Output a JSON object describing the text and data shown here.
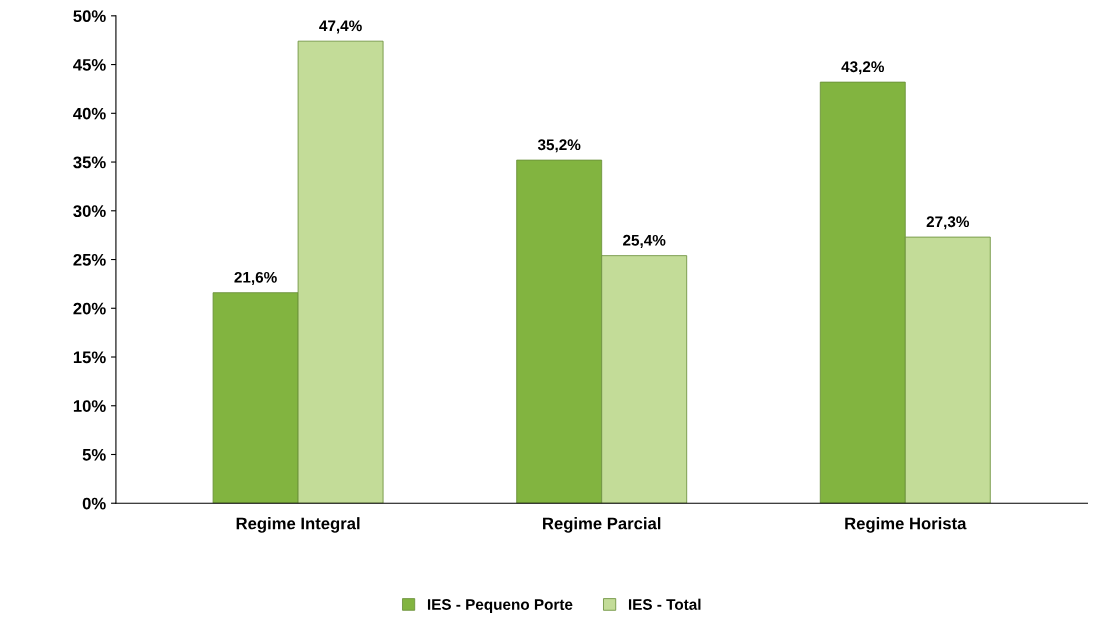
{
  "chart_data": {
    "type": "bar",
    "categories": [
      "Regime Integral",
      "Regime Parcial",
      "Regime Horista"
    ],
    "series": [
      {
        "name": "IES - Pequeno Porte",
        "color": "#82b440",
        "values": [
          21.6,
          35.2,
          43.2
        ],
        "value_labels": [
          "21,6%",
          "35,2%",
          "43,2%"
        ]
      },
      {
        "name": "IES - Total",
        "color": "#c3dc98",
        "values": [
          47.4,
          25.4,
          27.3
        ],
        "value_labels": [
          "47,4%",
          "25,4%",
          "27,3%"
        ]
      }
    ],
    "ylim": [
      0,
      50
    ],
    "yticks": [
      {
        "value": 0,
        "label": "0%"
      },
      {
        "value": 5,
        "label": "5%"
      },
      {
        "value": 10,
        "label": "10%"
      },
      {
        "value": 15,
        "label": "15%"
      },
      {
        "value": 20,
        "label": "20%"
      },
      {
        "value": 25,
        "label": "25%"
      },
      {
        "value": 30,
        "label": "30%"
      },
      {
        "value": 35,
        "label": "35%"
      },
      {
        "value": 40,
        "label": "40%"
      },
      {
        "value": 45,
        "label": "45%"
      },
      {
        "value": 50,
        "label": "50%"
      }
    ],
    "grid": false,
    "legend": "bottom"
  }
}
